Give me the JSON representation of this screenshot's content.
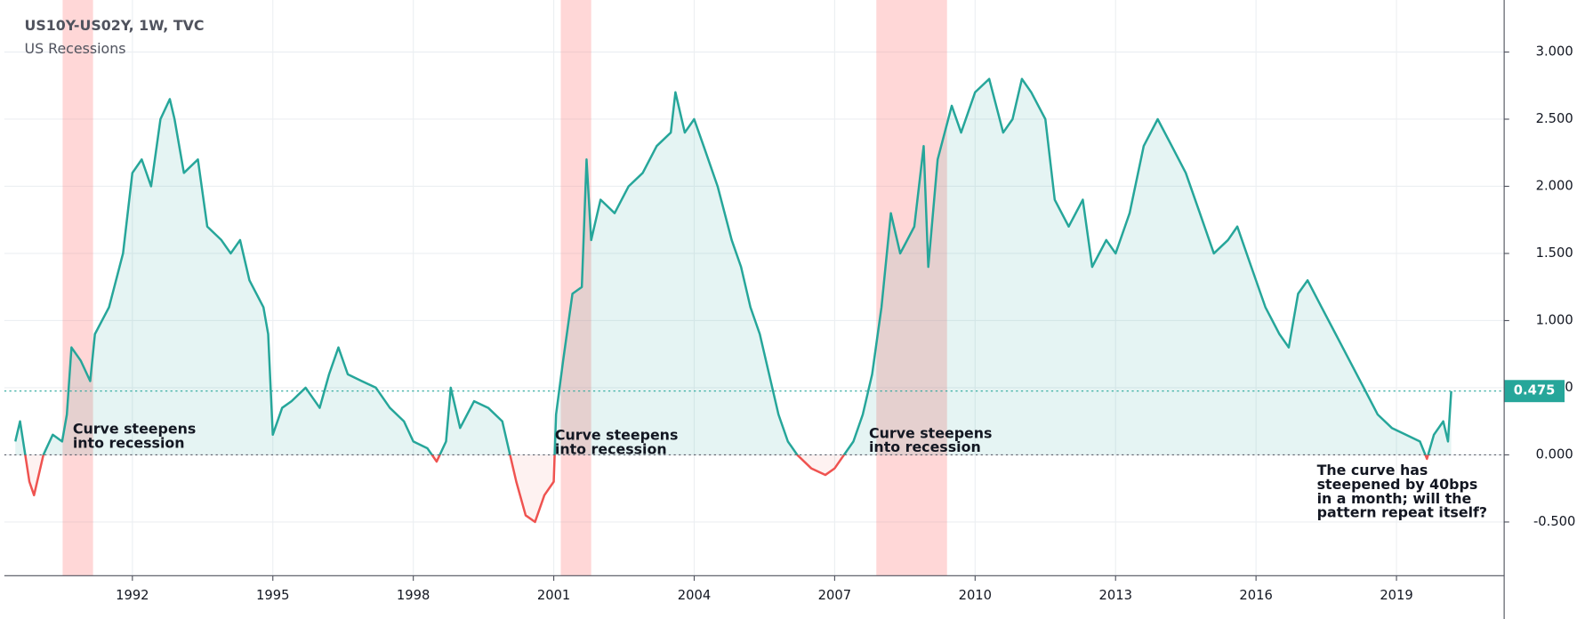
{
  "chart_data": {
    "type": "line",
    "title": "US10Y-US02Y, 1W, TVC",
    "recession_name": "US Recessions",
    "recessions": [
      [
        1990.51,
        1991.16
      ],
      [
        2001.15,
        2001.8
      ],
      [
        2007.89,
        2009.4
      ]
    ],
    "x": [
      1989.5,
      1989.6,
      1989.8,
      1989.9,
      1990.1,
      1990.3,
      1990.5,
      1990.6,
      1990.7,
      1990.9,
      1991.1,
      1991.2,
      1991.5,
      1991.8,
      1992.0,
      1992.2,
      1992.4,
      1992.6,
      1992.8,
      1992.9,
      1993.1,
      1993.4,
      1993.6,
      1993.9,
      1994.1,
      1994.3,
      1994.5,
      1994.8,
      1994.9,
      1995.0,
      1995.2,
      1995.4,
      1995.7,
      1996.0,
      1996.2,
      1996.4,
      1996.6,
      1996.9,
      1997.2,
      1997.5,
      1997.8,
      1998.0,
      1998.3,
      1998.5,
      1998.7,
      1998.8,
      1999.0,
      1999.3,
      1999.6,
      1999.9,
      2000.0,
      2000.2,
      2000.4,
      2000.6,
      2000.8,
      2001.0,
      2001.05,
      2001.2,
      2001.4,
      2001.6,
      2001.7,
      2001.8,
      2002.0,
      2002.3,
      2002.6,
      2002.9,
      2003.2,
      2003.5,
      2003.6,
      2003.8,
      2004.0,
      2004.2,
      2004.5,
      2004.8,
      2005.0,
      2005.2,
      2005.4,
      2005.6,
      2005.8,
      2006.0,
      2006.2,
      2006.5,
      2006.8,
      2007.0,
      2007.2,
      2007.4,
      2007.6,
      2007.8,
      2008.0,
      2008.2,
      2008.4,
      2008.7,
      2008.9,
      2009.0,
      2009.2,
      2009.5,
      2009.7,
      2010.0,
      2010.3,
      2010.6,
      2010.8,
      2011.0,
      2011.2,
      2011.5,
      2011.7,
      2012.0,
      2012.3,
      2012.5,
      2012.8,
      2013.0,
      2013.3,
      2013.6,
      2013.9,
      2014.2,
      2014.5,
      2014.8,
      2015.1,
      2015.4,
      2015.6,
      2015.9,
      2016.2,
      2016.5,
      2016.7,
      2016.9,
      2017.1,
      2017.4,
      2017.7,
      2018.0,
      2018.3,
      2018.6,
      2018.9,
      2019.2,
      2019.5,
      2019.65,
      2019.8,
      2020.0,
      2020.1,
      2020.17
    ],
    "series": [
      {
        "name": "US10Y-US02Y",
        "color": "#26a69a",
        "negative_color": "#ef5350",
        "values": [
          0.1,
          0.25,
          -0.2,
          -0.3,
          0.0,
          0.15,
          0.1,
          0.3,
          0.8,
          0.7,
          0.55,
          0.9,
          1.1,
          1.5,
          2.1,
          2.2,
          2.0,
          2.5,
          2.65,
          2.5,
          2.1,
          2.2,
          1.7,
          1.6,
          1.5,
          1.6,
          1.3,
          1.1,
          0.9,
          0.15,
          0.35,
          0.4,
          0.5,
          0.35,
          0.6,
          0.8,
          0.6,
          0.55,
          0.5,
          0.35,
          0.25,
          0.1,
          0.05,
          -0.05,
          0.1,
          0.5,
          0.2,
          0.4,
          0.35,
          0.25,
          0.1,
          -0.2,
          -0.45,
          -0.5,
          -0.3,
          -0.2,
          0.3,
          0.7,
          1.2,
          1.25,
          2.2,
          1.6,
          1.9,
          1.8,
          2.0,
          2.1,
          2.3,
          2.4,
          2.7,
          2.4,
          2.5,
          2.3,
          2.0,
          1.6,
          1.4,
          1.1,
          0.9,
          0.6,
          0.3,
          0.1,
          0.0,
          -0.1,
          -0.15,
          -0.1,
          0.0,
          0.1,
          0.3,
          0.6,
          1.1,
          1.8,
          1.5,
          1.7,
          2.3,
          1.4,
          2.2,
          2.6,
          2.4,
          2.7,
          2.8,
          2.4,
          2.5,
          2.8,
          2.7,
          2.5,
          1.9,
          1.7,
          1.9,
          1.4,
          1.6,
          1.5,
          1.8,
          2.3,
          2.5,
          2.3,
          2.1,
          1.8,
          1.5,
          1.6,
          1.7,
          1.4,
          1.1,
          0.9,
          0.8,
          1.2,
          1.3,
          1.1,
          0.9,
          0.7,
          0.5,
          0.3,
          0.2,
          0.15,
          0.1,
          -0.03,
          0.15,
          0.25,
          0.1,
          0.475
        ]
      }
    ],
    "last_value": 0.475,
    "xlim": [
      1989.48,
      2021.3
    ],
    "xticks": [
      1992,
      1995,
      1998,
      2001,
      2004,
      2007,
      2010,
      2013,
      2016,
      2019
    ],
    "ylim": [
      -0.9,
      3.35
    ],
    "yticks": [
      {
        "value": -0.5,
        "label": "-0.500"
      },
      {
        "value": 0,
        "label": "0.000"
      },
      {
        "value": 0.5,
        "label": "0.500"
      },
      {
        "value": 1,
        "label": "1.000"
      },
      {
        "value": 1.5,
        "label": "1.500"
      },
      {
        "value": 2,
        "label": "2.000"
      },
      {
        "value": 2.5,
        "label": "2.500"
      },
      {
        "value": 3,
        "label": "3.000"
      }
    ],
    "grid": true,
    "annotations": [
      {
        "lines": [
          "Curve steepens",
          "into recession"
        ]
      },
      {
        "lines": [
          "Curve steepens",
          "into recession"
        ]
      },
      {
        "lines": [
          "Curve steepens",
          "into recession"
        ]
      },
      {
        "lines": [
          "The curve has",
          "steepened by 40bps",
          "in a month; will the",
          "pattern repeat itself?"
        ]
      }
    ]
  }
}
